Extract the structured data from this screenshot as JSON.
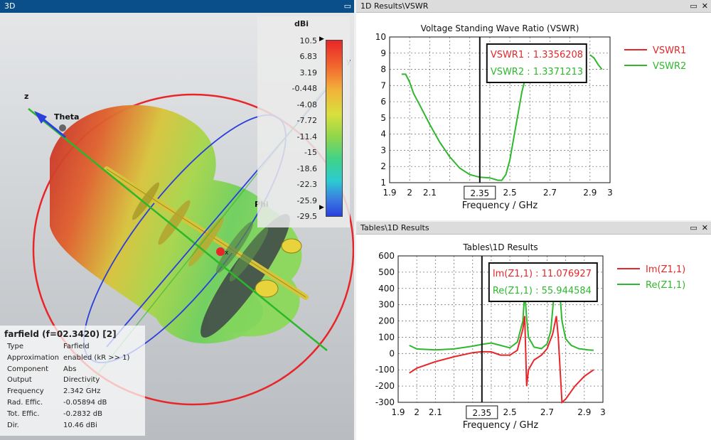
{
  "panes": {
    "view3d": {
      "title": "3D"
    },
    "vswr": {
      "title": "1D Results\\VSWR"
    },
    "tables": {
      "title": "Tables\\1D Results"
    }
  },
  "colorbar": {
    "unit": "dBi",
    "labels": [
      "10.5",
      "6.83",
      "3.19",
      "-0.448",
      "-4.08",
      "-7.72",
      "-11.4",
      "-15",
      "-18.6",
      "-22.3",
      "-25.9",
      "-29.5"
    ]
  },
  "axes3d": {
    "z": "z",
    "theta": "Theta",
    "phi": "Phi",
    "y": "y",
    "x": "x"
  },
  "info": {
    "title": "farfield (f=02.3420) [2]",
    "rows": [
      {
        "key": "Type",
        "value": "Farfield"
      },
      {
        "key": "Approximation",
        "value": "enabled (kR >> 1)"
      },
      {
        "key": "Component",
        "value": "Abs"
      },
      {
        "key": "Output",
        "value": "Directivity"
      },
      {
        "key": "Frequency",
        "value": "2.342 GHz"
      },
      {
        "key": "Rad. Effic.",
        "value": "-0.05894 dB"
      },
      {
        "key": "Tot. Effic.",
        "value": "-0.2832 dB"
      },
      {
        "key": "Dir.",
        "value": "10.46 dBi"
      }
    ]
  },
  "chart_data": [
    {
      "type": "line",
      "title": "Voltage Standing Wave Ratio (VSWR)",
      "xlabel": "Frequency / GHz",
      "xlim": [
        1.9,
        3
      ],
      "ylim": [
        1,
        10
      ],
      "xticks": [
        "1.9",
        "2",
        "2.1",
        "2.35",
        "2.5",
        "2.7",
        "2.9",
        "3"
      ],
      "yticks": [
        "1",
        "2",
        "3",
        "4",
        "5",
        "6",
        "7",
        "8",
        "9",
        "10"
      ],
      "marker_x": 2.35,
      "marker_label": "2.35",
      "readouts": [
        {
          "text": "VSWR1 : 1.3356208",
          "color": "#e8262a"
        },
        {
          "text": "VSWR2 : 1.3371213",
          "color": "#2eb82e"
        }
      ],
      "legend": [
        {
          "name": "VSWR1",
          "color": "#e8262a"
        },
        {
          "name": "VSWR2",
          "color": "#2eb82e"
        }
      ],
      "series": [
        {
          "name": "VSWR2",
          "color": "#2eb82e",
          "x": [
            1.96,
            1.98,
            2.0,
            2.02,
            2.05,
            2.1,
            2.15,
            2.2,
            2.25,
            2.3,
            2.35,
            2.4,
            2.44,
            2.46,
            2.48,
            2.5,
            2.52,
            2.54,
            2.56,
            2.58
          ],
          "y": [
            7.7,
            7.7,
            7.2,
            6.5,
            5.8,
            4.6,
            3.5,
            2.6,
            1.9,
            1.5,
            1.34,
            1.3,
            1.15,
            1.15,
            1.5,
            2.4,
            3.8,
            5.2,
            6.6,
            7.6
          ]
        },
        {
          "name": "VSWR2",
          "color": "#2eb82e",
          "x": [
            2.9,
            2.92,
            2.94,
            2.96
          ],
          "y": [
            8.9,
            8.7,
            8.3,
            8.0
          ]
        }
      ]
    },
    {
      "type": "line",
      "title": "Tables\\1D Results",
      "xlabel": "Frequency / GHz",
      "xlim": [
        1.9,
        3
      ],
      "ylim": [
        -300,
        600
      ],
      "xticks": [
        "1.9",
        "2",
        "2.1",
        "2.35",
        "2.5",
        "2.7",
        "2.9",
        "3"
      ],
      "yticks": [
        "-300",
        "-200",
        "-100",
        "0",
        "100",
        "200",
        "300",
        "400",
        "500",
        "600"
      ],
      "marker_x": 2.35,
      "marker_label": "2.35",
      "readouts": [
        {
          "text": "Im(Z1,1) : 11.076927",
          "color": "#e8262a"
        },
        {
          "text": "Re(Z1,1) : 55.944584",
          "color": "#2eb82e"
        }
      ],
      "legend": [
        {
          "name": "Im(Z1,1)",
          "color": "#e8262a"
        },
        {
          "name": "Re(Z1,1)",
          "color": "#2eb82e"
        }
      ],
      "series": [
        {
          "name": "Re(Z1,1)",
          "color": "#2eb82e",
          "x": [
            1.96,
            2.0,
            2.1,
            2.2,
            2.3,
            2.35,
            2.4,
            2.45,
            2.5,
            2.54,
            2.57,
            2.58,
            2.59,
            2.6,
            2.63,
            2.67,
            2.7,
            2.72,
            2.74,
            2.76,
            2.77,
            2.78,
            2.8,
            2.83,
            2.87,
            2.92,
            2.95
          ],
          "y": [
            50,
            28,
            22,
            28,
            45,
            56,
            65,
            50,
            35,
            70,
            200,
            380,
            220,
            100,
            40,
            30,
            60,
            140,
            400,
            550,
            350,
            200,
            90,
            50,
            30,
            22,
            20
          ]
        },
        {
          "name": "Im(Z1,1)",
          "color": "#e8262a",
          "x": [
            1.96,
            2.0,
            2.1,
            2.2,
            2.3,
            2.35,
            2.4,
            2.45,
            2.5,
            2.54,
            2.57,
            2.58,
            2.59,
            2.6,
            2.63,
            2.67,
            2.7,
            2.73,
            2.75,
            2.76,
            2.77,
            2.78,
            2.8,
            2.85,
            2.9,
            2.95
          ],
          "y": [
            -120,
            -90,
            -50,
            -20,
            5,
            11,
            10,
            -10,
            -10,
            20,
            150,
            230,
            -200,
            -100,
            -40,
            -10,
            30,
            120,
            230,
            100,
            -100,
            -300,
            -280,
            -200,
            -140,
            -100
          ]
        }
      ]
    }
  ]
}
